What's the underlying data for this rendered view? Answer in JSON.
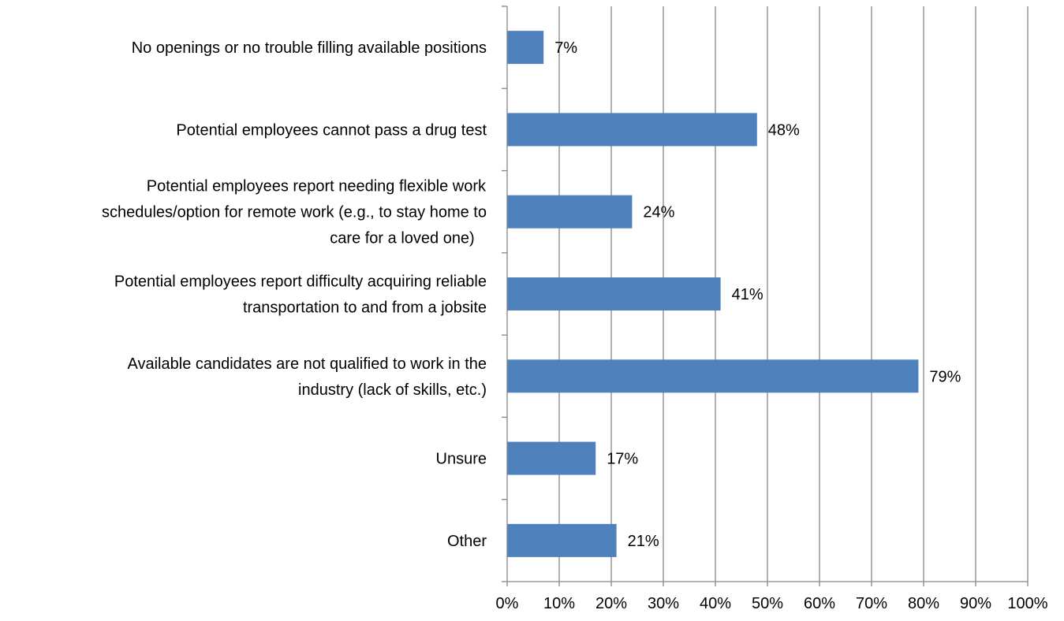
{
  "chart_data": {
    "type": "bar",
    "orientation": "horizontal",
    "categories": [
      [
        "No openings or no trouble filling available positions"
      ],
      [
        "Potential employees cannot pass a drug test"
      ],
      [
        "Potential employees report needing flexible work",
        "schedules/option for remote work (e.g., to stay home to",
        "care for a loved one)"
      ],
      [
        "Potential employees report difficulty acquiring reliable",
        "transportation to and from a jobsite"
      ],
      [
        "Available candidates are not qualified to work in the",
        "industry (lack of skills, etc.)"
      ],
      [
        "Unsure"
      ],
      [
        "Other"
      ]
    ],
    "values": [
      7,
      48,
      24,
      41,
      79,
      17,
      21
    ],
    "data_labels": [
      "7%",
      "48%",
      "24%",
      "41%",
      "79%",
      "17%",
      "21%"
    ],
    "xlim": [
      0,
      100
    ],
    "x_ticks": [
      0,
      10,
      20,
      30,
      40,
      50,
      60,
      70,
      80,
      90,
      100
    ],
    "x_tick_labels": [
      "0%",
      "10%",
      "20%",
      "30%",
      "40%",
      "50%",
      "60%",
      "70%",
      "80%",
      "90%",
      "100%"
    ],
    "grid": true,
    "bar_color": "#4F81BD",
    "grid_color": "#868686",
    "axis_color": "#868686"
  }
}
